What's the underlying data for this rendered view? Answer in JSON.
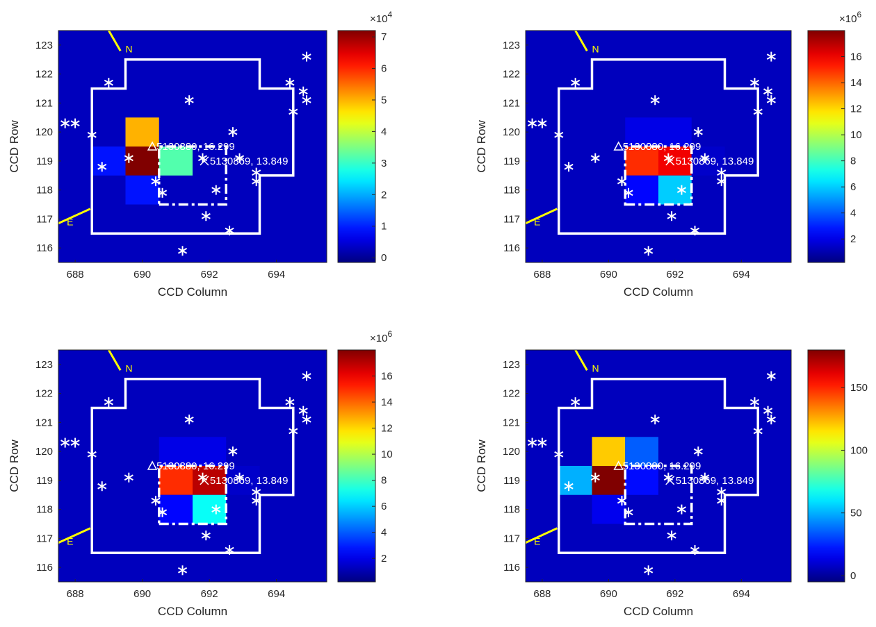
{
  "chart_data": [
    {
      "type": "heatmap",
      "xlabel": "CCD Column",
      "ylabel": "CCD Row",
      "xlim": [
        687.5,
        695.5
      ],
      "ylim": [
        115.5,
        123.5
      ],
      "xticks": [
        "688",
        "690",
        "692",
        "694"
      ],
      "yticks": [
        "116",
        "117",
        "118",
        "119",
        "120",
        "121",
        "122",
        "123"
      ],
      "colorbar": {
        "ticks": [
          "0",
          "1",
          "2",
          "3",
          "4",
          "5",
          "6",
          "7"
        ],
        "exponent_label": "×10",
        "exponent": "4",
        "min": -0.15,
        "max": 7.2
      },
      "hot_cells": [
        {
          "col": 690,
          "row": 119,
          "value": 7.2
        },
        {
          "col": 690,
          "row": 120,
          "value": 5.0
        },
        {
          "col": 691,
          "row": 119,
          "value": 3.2
        },
        {
          "col": 690,
          "row": 118,
          "value": 0.9
        },
        {
          "col": 689,
          "row": 119,
          "value": 0.9
        }
      ],
      "annotations": {
        "target_a": "5130880, 16.299",
        "target_b": "5130869, 13.849",
        "north": "N",
        "east": "E"
      }
    },
    {
      "type": "heatmap",
      "xlabel": "CCD Column",
      "ylabel": "CCD Row",
      "xlim": [
        687.5,
        695.5
      ],
      "ylim": [
        115.5,
        123.5
      ],
      "xticks": [
        "688",
        "690",
        "692",
        "694"
      ],
      "yticks": [
        "116",
        "117",
        "118",
        "119",
        "120",
        "121",
        "122",
        "123"
      ],
      "colorbar": {
        "ticks": [
          "2",
          "4",
          "6",
          "8",
          "10",
          "12",
          "14",
          "16"
        ],
        "exponent_label": "×10",
        "exponent": "6",
        "min": 0.2,
        "max": 18.0
      },
      "hot_cells": [
        {
          "col": 691,
          "row": 119,
          "value": 15.0
        },
        {
          "col": 692,
          "row": 119,
          "value": 16.0
        },
        {
          "col": 692,
          "row": 118,
          "value": 6.0
        },
        {
          "col": 691,
          "row": 118,
          "value": 2.5
        },
        {
          "col": 691,
          "row": 120,
          "value": 2.0
        },
        {
          "col": 692,
          "row": 120,
          "value": 2.0
        },
        {
          "col": 693,
          "row": 119,
          "value": 1.5
        }
      ],
      "annotations": {
        "target_a": "5130880, 16.299",
        "target_b": "5130869, 13.849",
        "north": "N",
        "east": "E"
      }
    },
    {
      "type": "heatmap",
      "xlabel": "CCD Column",
      "ylabel": "CCD Row",
      "xlim": [
        687.5,
        695.5
      ],
      "ylim": [
        115.5,
        123.5
      ],
      "xticks": [
        "688",
        "690",
        "692",
        "694"
      ],
      "yticks": [
        "116",
        "117",
        "118",
        "119",
        "120",
        "121",
        "122",
        "123"
      ],
      "colorbar": {
        "ticks": [
          "2",
          "4",
          "6",
          "8",
          "10",
          "12",
          "14",
          "16"
        ],
        "exponent_label": "×10",
        "exponent": "6",
        "min": 0.2,
        "max": 18.0
      },
      "hot_cells": [
        {
          "col": 691,
          "row": 119,
          "value": 15.0
        },
        {
          "col": 692,
          "row": 119,
          "value": 17.0
        },
        {
          "col": 692,
          "row": 118,
          "value": 7.0
        },
        {
          "col": 691,
          "row": 118,
          "value": 2.5
        },
        {
          "col": 691,
          "row": 120,
          "value": 2.0
        },
        {
          "col": 692,
          "row": 120,
          "value": 2.0
        },
        {
          "col": 693,
          "row": 119,
          "value": 1.5
        }
      ],
      "annotations": {
        "target_a": "5130880, 16.299",
        "target_b": "5130869, 13.849",
        "north": "N",
        "east": "E"
      }
    },
    {
      "type": "heatmap",
      "xlabel": "CCD Column",
      "ylabel": "CCD Row",
      "xlim": [
        687.5,
        695.5
      ],
      "ylim": [
        115.5,
        123.5
      ],
      "xticks": [
        "688",
        "690",
        "692",
        "694"
      ],
      "yticks": [
        "116",
        "117",
        "118",
        "119",
        "120",
        "121",
        "122",
        "123"
      ],
      "colorbar": {
        "ticks": [
          "0",
          "50",
          "100",
          "150"
        ],
        "exponent_label": "",
        "exponent": "",
        "min": -5,
        "max": 180
      },
      "hot_cells": [
        {
          "col": 690,
          "row": 119,
          "value": 180
        },
        {
          "col": 690,
          "row": 120,
          "value": 120
        },
        {
          "col": 689,
          "row": 119,
          "value": 50
        },
        {
          "col": 691,
          "row": 120,
          "value": 35
        },
        {
          "col": 691,
          "row": 119,
          "value": 20
        },
        {
          "col": 690,
          "row": 118,
          "value": 15
        }
      ],
      "annotations": {
        "target_a": "5130880, 16.299",
        "target_b": "5130869, 13.849",
        "north": "N",
        "east": "E"
      }
    }
  ],
  "stars": [
    [
      687.7,
      120.3
    ],
    [
      688.0,
      120.3
    ],
    [
      688.5,
      119.9
    ],
    [
      688.8,
      118.8
    ],
    [
      689.0,
      121.7
    ],
    [
      689.6,
      119.1
    ],
    [
      690.4,
      118.3
    ],
    [
      690.6,
      117.9
    ],
    [
      691.2,
      115.9
    ],
    [
      691.4,
      121.1
    ],
    [
      691.9,
      117.1
    ],
    [
      692.2,
      118.0
    ],
    [
      692.7,
      120.0
    ],
    [
      692.6,
      116.6
    ],
    [
      692.9,
      119.1
    ],
    [
      693.4,
      118.6
    ],
    [
      693.4,
      118.3
    ],
    [
      694.4,
      121.7
    ],
    [
      694.5,
      120.7
    ],
    [
      694.8,
      121.4
    ],
    [
      694.9,
      121.1
    ],
    [
      694.9,
      122.6
    ],
    [
      691.8,
      119.1
    ]
  ],
  "colors": {
    "aperture": "#ffffff",
    "compass": "#ffff00"
  }
}
